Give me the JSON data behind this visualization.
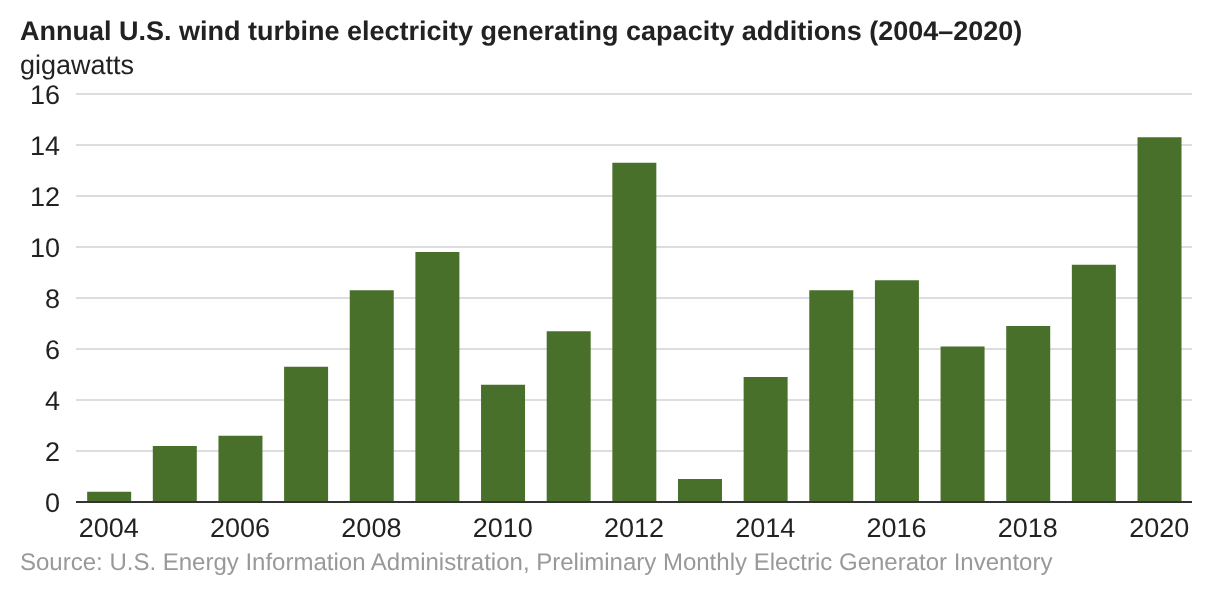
{
  "chart_data": {
    "type": "bar",
    "title": "Annual U.S. wind turbine electricity generating capacity additions (2004–2020)",
    "ylabel": "gigawatts",
    "categories": [
      "2004",
      null,
      "2006",
      null,
      "2008",
      null,
      "2010",
      null,
      "2012",
      null,
      "2014",
      null,
      "2016",
      null,
      "2018",
      null,
      "2020"
    ],
    "values": [
      0.4,
      2.2,
      2.6,
      5.3,
      8.3,
      9.8,
      4.6,
      6.7,
      13.3,
      0.9,
      4.9,
      8.3,
      8.7,
      6.1,
      6.9,
      9.3,
      14.3
    ],
    "color": "#48702a",
    "ylim": [
      0,
      16
    ],
    "yticks": [
      0,
      2,
      4,
      6,
      8,
      10,
      12,
      14,
      16
    ],
    "grid": "y",
    "annotations": [
      "Source: U.S. Energy Information Administration, Preliminary Monthly Electric Generator Inventory"
    ]
  }
}
